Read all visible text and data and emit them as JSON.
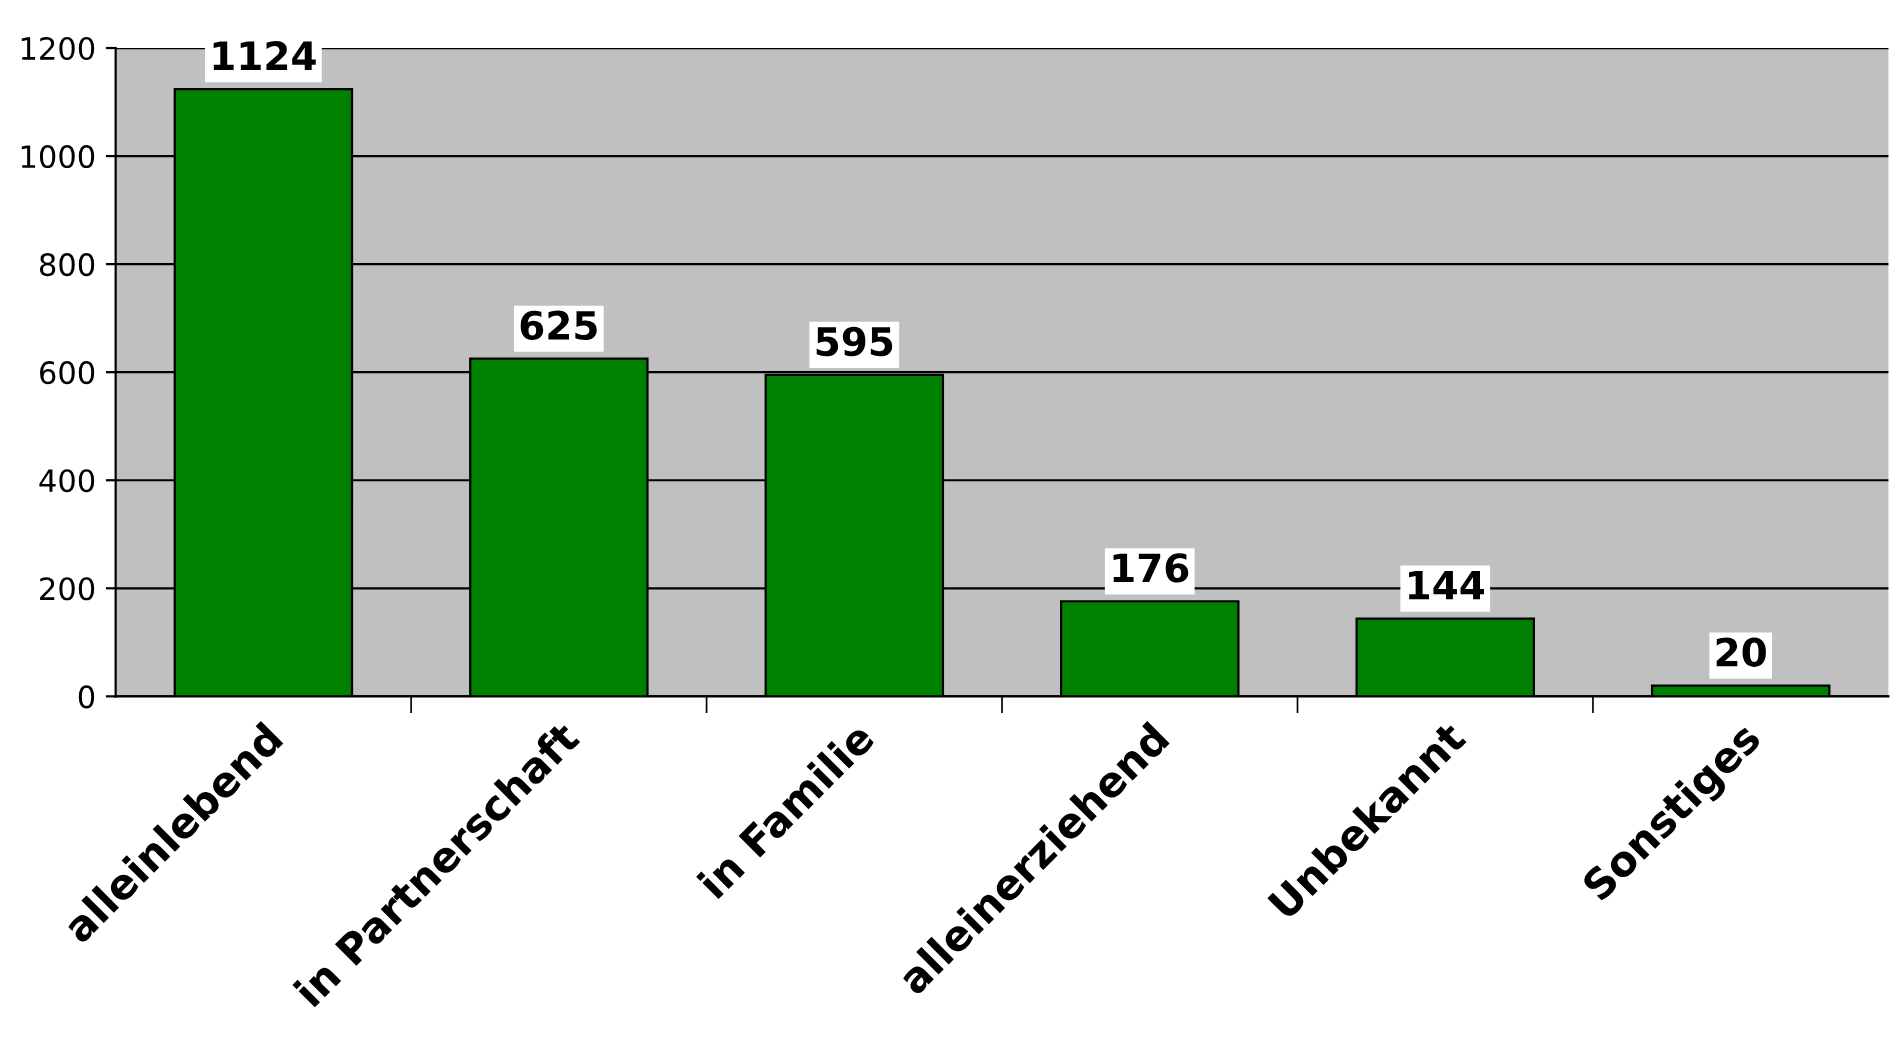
{
  "chart_data": {
    "type": "bar",
    "categories": [
      "alleinlebend",
      "in Partnerschaft",
      "in Familie",
      "alleinerziehend",
      "Unbekannt",
      "Sonstiges"
    ],
    "values": [
      1124,
      625,
      595,
      176,
      144,
      20
    ],
    "color": "#008000",
    "ylim": [
      0,
      1200
    ],
    "yticks": [
      0,
      200,
      400,
      600,
      800,
      1000,
      1200
    ],
    "grid": "y",
    "data_labels": true
  }
}
